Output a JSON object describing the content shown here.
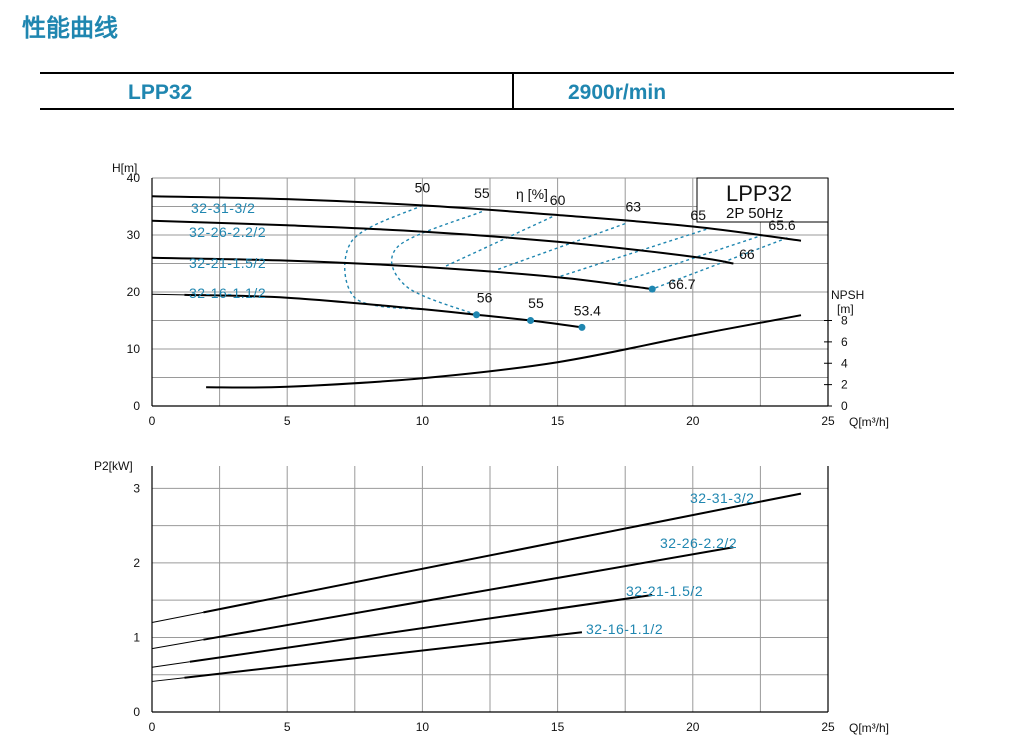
{
  "page": {
    "title": "性能曲线",
    "header": {
      "model": "LPP32",
      "speed": "2900r/min"
    },
    "colors": {
      "accent": "#1f86b0",
      "curve": "#000000",
      "dash": "#1f86b0",
      "grid": "#9a9a9a"
    }
  },
  "chart_data": [
    {
      "type": "line",
      "title": "",
      "box": {
        "title": "LPP32",
        "subtitle": "2P  50Hz"
      },
      "xlabel": "Q[m³/h]",
      "ylabel": "H[m]",
      "y2label": "NPSH [m]",
      "eff_label": "η [%]",
      "xlim": [
        0,
        25
      ],
      "ylim": [
        0,
        40
      ],
      "y2lim": [
        0,
        8
      ],
      "xticks": [
        "0",
        "5",
        "10",
        "15",
        "20",
        "25"
      ],
      "yticks": [
        "0",
        "10",
        "20",
        "30",
        "40"
      ],
      "y2ticks": [
        "0",
        "2",
        "4",
        "6",
        "8"
      ],
      "grid": true,
      "series": [
        {
          "name": "32-31-3/2",
          "x": [
            0,
            5,
            10,
            15,
            20,
            24
          ],
          "y": [
            36.8,
            36.3,
            35.2,
            33.5,
            31.5,
            29.0
          ]
        },
        {
          "name": "32-26-2.2/2",
          "x": [
            0,
            5,
            10,
            15,
            20,
            21.5
          ],
          "y": [
            32.5,
            31.7,
            30.6,
            28.8,
            26.2,
            25.0
          ]
        },
        {
          "name": "32-21-1.5/2",
          "x": [
            0,
            5,
            10,
            15,
            18.5
          ],
          "y": [
            26.0,
            25.5,
            24.4,
            22.6,
            20.5
          ]
        },
        {
          "name": "32-16-1.1/2",
          "x": [
            1.2,
            5,
            10,
            12,
            14,
            15.9
          ],
          "y": [
            19.5,
            19.0,
            17.0,
            16.0,
            15.0,
            13.8
          ]
        }
      ],
      "npsh": {
        "x": [
          2,
          5,
          10,
          15,
          20,
          24
        ],
        "y": [
          1.75,
          1.8,
          2.6,
          4.1,
          6.6,
          8.5
        ]
      },
      "efficiency_contours": [
        {
          "label": "50",
          "x": [
            10,
            7.4,
            7.5,
            10
          ],
          "y": [
            35.2,
            29,
            19,
            16.9
          ]
        },
        {
          "label": "55",
          "x": [
            12.2,
            9.1,
            9.4,
            12
          ],
          "y": [
            34.1,
            28,
            21,
            16.0
          ]
        },
        {
          "label": "60",
          "x": [
            14.8,
            10.8
          ],
          "y": [
            33.2,
            24.4
          ]
        },
        {
          "label": "63",
          "x": [
            17.5,
            12.7
          ],
          "y": [
            32.0,
            23.8
          ]
        },
        {
          "label": "65",
          "x": [
            20.5,
            15.0
          ],
          "y": [
            31.0,
            22.6
          ]
        },
        {
          "label": "65.6",
          "x": [
            22.6,
            17.2
          ],
          "y": [
            30.0,
            21.5
          ]
        },
        {
          "label": "66",
          "x": [
            23.5,
            18.5
          ],
          "y": [
            29.5,
            20.5
          ]
        }
      ],
      "efficiency_labels": [
        {
          "label": "50",
          "x": 10,
          "y": 37.5
        },
        {
          "label": "55",
          "x": 12.2,
          "y": 36.5
        },
        {
          "label": "60",
          "x": 15.0,
          "y": 35.3
        },
        {
          "label": "63",
          "x": 17.8,
          "y": 34.1
        },
        {
          "label": "65",
          "x": 20.2,
          "y": 32.6
        },
        {
          "label": "65.6",
          "x": 23.3,
          "y": 30.9
        },
        {
          "label": "66",
          "x": 22.0,
          "y": 25.8
        },
        {
          "label": "66.7",
          "x": 19.6,
          "y": 20.5
        },
        {
          "label": "56",
          "x": 12.3,
          "y": 18.2
        },
        {
          "label": "55",
          "x": 14.2,
          "y": 17.2
        },
        {
          "label": "53.4",
          "x": 16.1,
          "y": 15.9
        }
      ],
      "markers": [
        {
          "x": 12,
          "y": 16.0
        },
        {
          "x": 14,
          "y": 15.0
        },
        {
          "x": 15.9,
          "y": 13.8
        },
        {
          "x": 18.5,
          "y": 20.5
        }
      ]
    },
    {
      "type": "line",
      "title": "",
      "xlabel": "Q[m³/h]",
      "ylabel": "P2[kW]",
      "xlim": [
        0,
        25
      ],
      "ylim": [
        0,
        3.3
      ],
      "xticks": [
        "0",
        "5",
        "10",
        "15",
        "20",
        "25"
      ],
      "yticks": [
        "0",
        "1",
        "2",
        "3"
      ],
      "grid": true,
      "series": [
        {
          "name": "32-31-3/2",
          "x": [
            0,
            24
          ],
          "y": [
            1.2,
            2.93
          ]
        },
        {
          "name": "32-26-2.2/2",
          "x": [
            0,
            21.5
          ],
          "y": [
            0.85,
            2.21
          ]
        },
        {
          "name": "32-21-1.5/2",
          "x": [
            0,
            18.5
          ],
          "y": [
            0.6,
            1.57
          ]
        },
        {
          "name": "32-16-1.1/2",
          "x": [
            0,
            15.9
          ],
          "y": [
            0.41,
            1.07
          ]
        }
      ]
    }
  ]
}
